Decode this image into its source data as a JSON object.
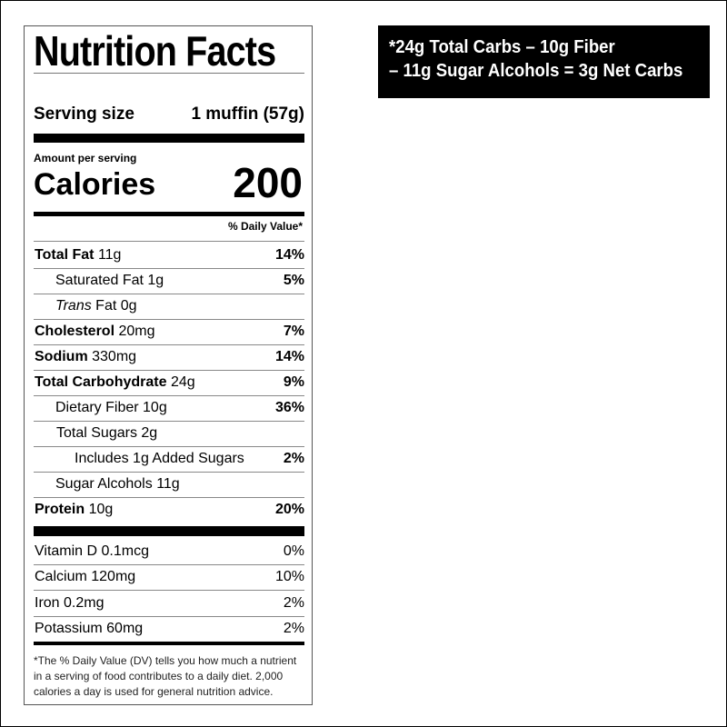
{
  "label": {
    "title": "Nutrition Facts",
    "serving_label": "Serving size",
    "serving_value": "1 muffin (57g)",
    "amount_per_serving": "Amount per serving",
    "calories_label": "Calories",
    "calories_value": "200",
    "daily_value_header": "% Daily Value*",
    "nutrients": [
      {
        "name": "Total Fat",
        "amount": "11g",
        "dv": "14%"
      },
      {
        "name": "Saturated Fat",
        "amount": "1g",
        "dv": "5%"
      },
      {
        "name": "Trans",
        "name2": "Fat",
        "amount": "0g",
        "dv": ""
      },
      {
        "name": "Cholesterol",
        "amount": "20mg",
        "dv": "7%"
      },
      {
        "name": "Sodium",
        "amount": "330mg",
        "dv": "14%"
      },
      {
        "name": "Total Carbohydrate",
        "amount": "24g",
        "dv": "9%"
      },
      {
        "name": "Dietary Fiber",
        "amount": "10g",
        "dv": "36%"
      },
      {
        "name": "Total Sugars",
        "amount": "2g",
        "dv": ""
      },
      {
        "name": "Includes 1g Added Sugars",
        "amount": "",
        "dv": "2%"
      },
      {
        "name": "Sugar Alcohols",
        "amount": "11g",
        "dv": ""
      },
      {
        "name": "Protein",
        "amount": "10g",
        "dv": "20%"
      }
    ],
    "vitamins": [
      {
        "name": "Vitamin D",
        "amount": "0.1mcg",
        "dv": "0%"
      },
      {
        "name": "Calcium",
        "amount": "120mg",
        "dv": "10%"
      },
      {
        "name": "Iron",
        "amount": "0.2mg",
        "dv": "2%"
      },
      {
        "name": "Potassium",
        "amount": "60mg",
        "dv": "2%"
      }
    ],
    "footnote": "*The % Daily Value (DV) tells you how much a nutrient in a serving of food contributes to a daily diet. 2,000 calories a day is used for general nutrition advice."
  },
  "net_carbs_note": {
    "line1": "*24g Total Carbs – 10g Fiber",
    "line2": "– 11g Sugar Alcohols = 3g Net Carbs"
  }
}
